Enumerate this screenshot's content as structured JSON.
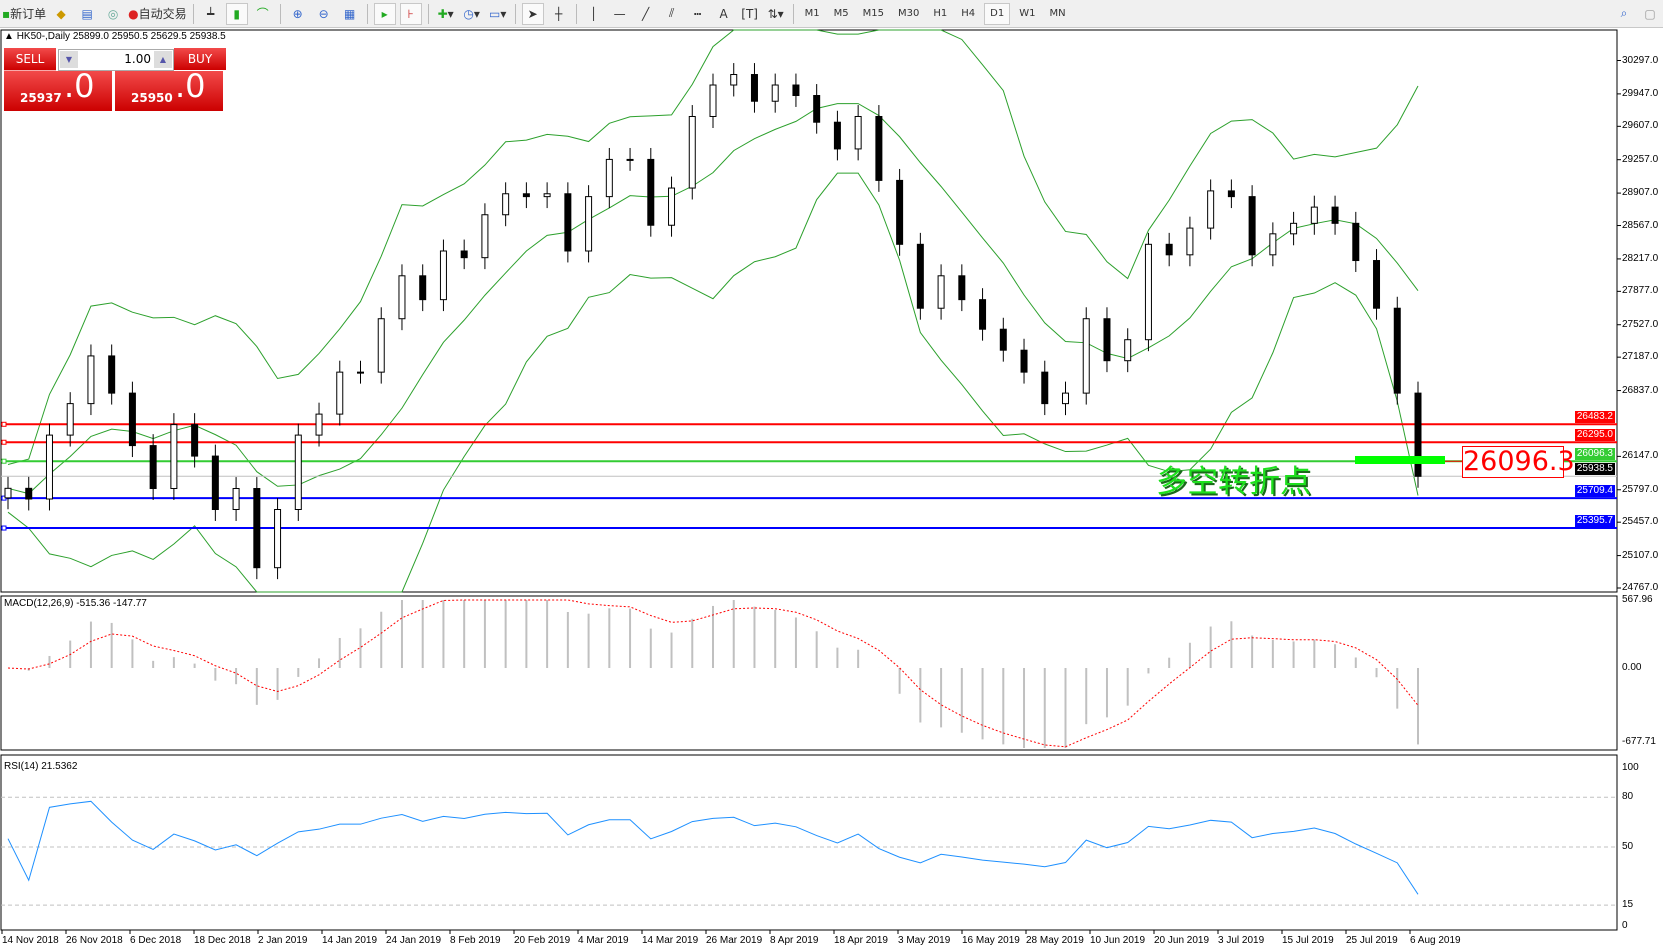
{
  "toolbar": {
    "new_order": "新订单",
    "auto_trading": "自动交易",
    "icons": [
      "new-order-icon",
      "market-watch-icon",
      "navigator-icon",
      "signals-icon",
      "auto-trading-icon",
      "bar-chart-icon",
      "candlestick-icon",
      "line-chart-icon",
      "zoom-in-icon",
      "zoom-out-icon",
      "tile-windows-icon",
      "auto-scroll-icon",
      "chart-shift-icon",
      "indicators-icon",
      "periods-clock-icon",
      "templates-icon",
      "cursor-icon",
      "crosshair-icon",
      "vertical-line-icon",
      "horizontal-line-icon",
      "trendline-icon",
      "fibo-expansion-icon",
      "fibo-fan-icon",
      "text-icon",
      "text-label-icon",
      "arrows-icon",
      "search-icon",
      "chat-icon"
    ],
    "timeframes": [
      "M1",
      "M5",
      "M15",
      "M30",
      "H1",
      "H4",
      "D1",
      "W1",
      "MN"
    ],
    "active_timeframe": "D1"
  },
  "chart_header": "HK50-,Daily  25899.0 25950.5 25629.5 25938.5",
  "trade_panel": {
    "sell_label": "SELL",
    "buy_label": "BUY",
    "lot": "1.00",
    "sell_price_small": "25937",
    "sell_price_big": ".0",
    "buy_price_small": "25950",
    "buy_price_big": ".0"
  },
  "annotation": {
    "text": "多空转折点",
    "price_box": "26096.3"
  },
  "chart_data": [
    {
      "type": "candlestick",
      "symbol": "HK50-",
      "timeframe": "Daily",
      "last_ohlc": {
        "open": 25899.0,
        "high": 25950.5,
        "low": 25629.5,
        "close": 25938.5
      },
      "close": [
        25812,
        25700,
        26370,
        26700,
        27200,
        26810,
        26260,
        25810,
        26480,
        26150,
        25590,
        25810,
        24980,
        25590,
        26370,
        26590,
        27030,
        27030,
        27590,
        28040,
        27790,
        28300,
        28230,
        28680,
        28900,
        28870,
        28900,
        28300,
        28870,
        29260,
        29260,
        28570,
        28960,
        29710,
        30040,
        30150,
        29870,
        30040,
        29930,
        29650,
        29370,
        29710,
        29040,
        28370,
        27700,
        28040,
        27790,
        27480,
        27260,
        27030,
        26700,
        26810,
        27590,
        27150,
        27370,
        28370,
        28260,
        28540,
        28930,
        28870,
        28260,
        28480,
        28590,
        28760,
        28590,
        28200,
        27700,
        26810,
        25938
      ],
      "overlay": "Bollinger Bands",
      "ylim": [
        24725,
        30617
      ],
      "y_ticks": [
        "30297.0",
        "29947.0",
        "29607.0",
        "29257.0",
        "28907.0",
        "28567.0",
        "28217.0",
        "27877.0",
        "27527.0",
        "27187.0",
        "26837.0",
        "26147.0",
        "25797.0",
        "25457.0",
        "25107.0",
        "24767.0"
      ],
      "x_ticks": [
        "14 Nov 2018",
        "26 Nov 2018",
        "6 Dec 2018",
        "18 Dec 2018",
        "2 Jan 2019",
        "14 Jan 2019",
        "24 Jan 2019",
        "8 Feb 2019",
        "20 Feb 2019",
        "4 Mar 2019",
        "14 Mar 2019",
        "26 Mar 2019",
        "8 Apr 2019",
        "18 Apr 2019",
        "3 May 2019",
        "16 May 2019",
        "28 May 2019",
        "10 Jun 2019",
        "20 Jun 2019",
        "3 Jul 2019",
        "15 Jul 2019",
        "25 Jul 2019",
        "6 Aug 2019"
      ],
      "hlines": [
        {
          "value": 26483.2,
          "label": "26483.2",
          "color": "#ff0000"
        },
        {
          "value": 26295.0,
          "label": "26295.0",
          "color": "#ff0000"
        },
        {
          "value": 26096.3,
          "label": "26096.3",
          "color": "#33cc33"
        },
        {
          "value": 25938.5,
          "label": "25938.5",
          "color": "#000000"
        },
        {
          "value": 25709.4,
          "label": "25709.4",
          "color": "#0000ff"
        },
        {
          "value": 25395.7,
          "label": "25395.7",
          "color": "#0000ff"
        }
      ]
    },
    {
      "type": "bar+line",
      "title": "MACD(12,26,9) -515.36 -147.77",
      "ylim": [
        -677.71,
        567.96
      ],
      "y_ticks": [
        "567.96",
        "0.00",
        "-677.71"
      ],
      "colors": {
        "histogram": "#c0c0c0",
        "signal": "#ff0000"
      }
    },
    {
      "type": "line",
      "title": "RSI(14) 21.5362",
      "ylim": [
        0,
        100
      ],
      "y_ticks": [
        "100",
        "80",
        "50",
        "15",
        "0"
      ],
      "levels": [
        80,
        50,
        15
      ],
      "color": "#1e90ff"
    }
  ]
}
